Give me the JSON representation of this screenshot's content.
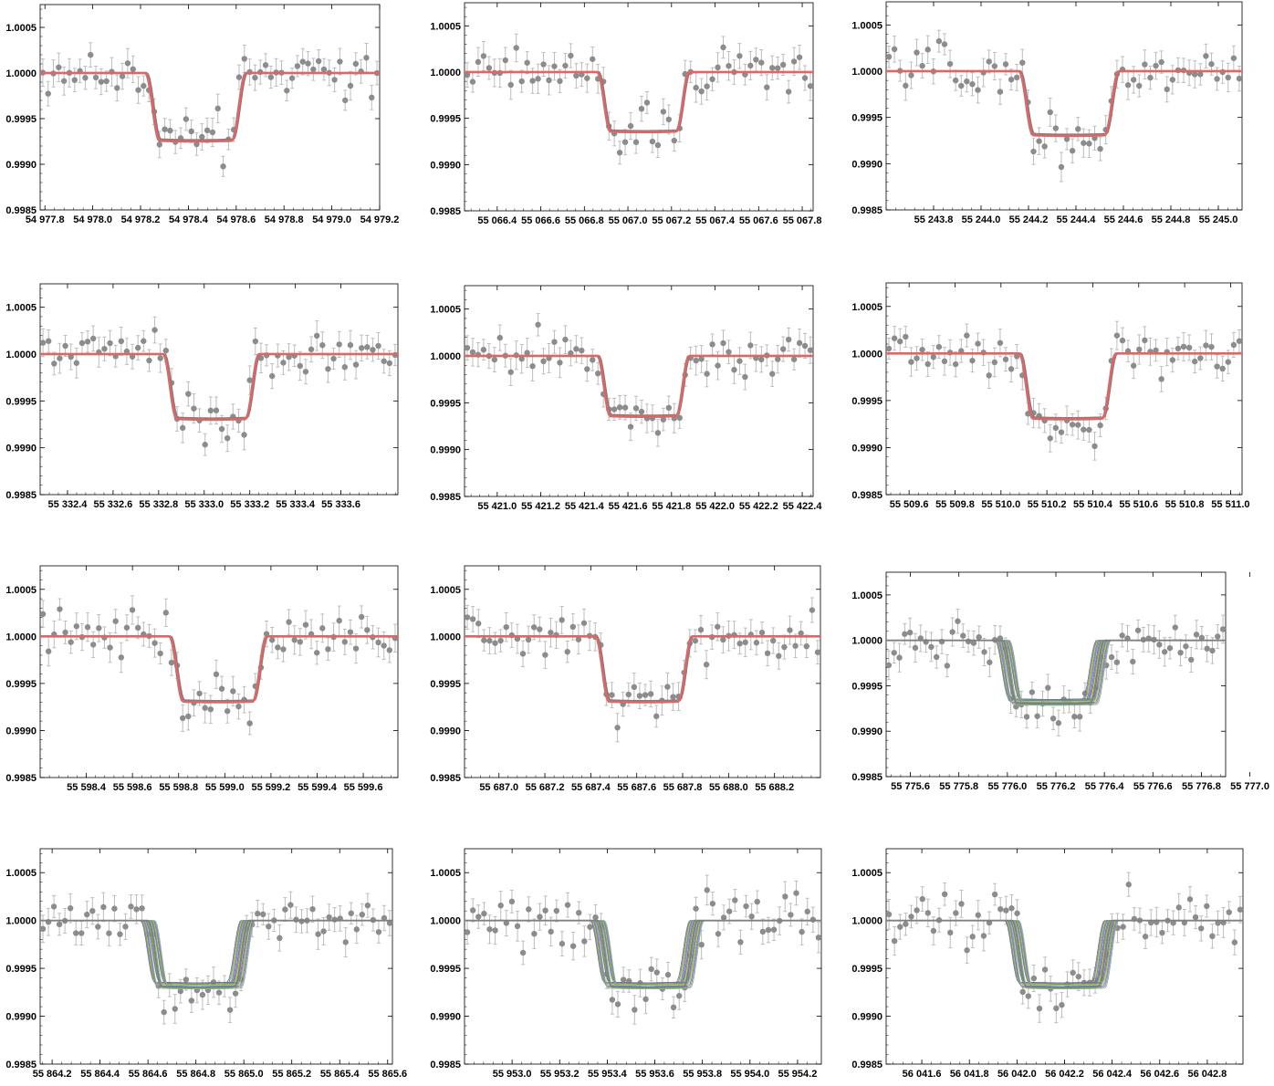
{
  "figure": {
    "colors": {
      "data": "#8c8c8c",
      "model_red": "#e06666",
      "model_gray": "#808080",
      "frame": "#000000"
    },
    "ensemble_colors": [
      "#7b6bb5",
      "#5aa05a",
      "#c8b84a",
      "#4b89c8",
      "#b66ab6",
      "#7fbf7f"
    ]
  },
  "chart_data": [
    {
      "type": "scatter",
      "id": "p1",
      "model": "red",
      "x_ticks": [
        "54 977.8",
        "54 978.0",
        "54 978.2",
        "54 978.4",
        "54 978.6",
        "54 978.8",
        "54 979.0",
        "54 979.2"
      ],
      "x_tick_values": [
        54977.8,
        54978.0,
        54978.2,
        54978.4,
        54978.6,
        54978.8,
        54979.0,
        54979.2
      ],
      "xlim": [
        54977.78,
        54979.2
      ],
      "y_ticks": [
        "1.0005",
        "1.0000",
        "0.9995",
        "0.9990",
        "0.9985"
      ],
      "y_tick_values": [
        1.0005,
        1.0,
        0.9995,
        0.999,
        0.9985
      ],
      "ylim": [
        0.9985,
        1.00075
      ],
      "transit": {
        "t1": 54978.22,
        "t4": 54978.64,
        "depth": 0.00075
      }
    },
    {
      "type": "scatter",
      "id": "p2",
      "model": "red",
      "x_ticks": [
        "55 066.4",
        "55 066.6",
        "55 066.8",
        "55 067.0",
        "55 067.2",
        "55 067.4",
        "55 067.6",
        "55 067.8"
      ],
      "x_tick_values": [
        55066.4,
        55066.6,
        55066.8,
        55067.0,
        55067.2,
        55067.4,
        55067.6,
        55067.8
      ],
      "xlim": [
        55066.25,
        55067.85
      ],
      "y_ticks": [
        "1.0005",
        "1.0000",
        "0.9995",
        "0.9990",
        "0.9985"
      ],
      "y_tick_values": [
        1.0005,
        1.0,
        0.9995,
        0.999,
        0.9985
      ],
      "ylim": [
        0.9985,
        1.00075
      ],
      "transit": {
        "t1": 55066.86,
        "t4": 55067.28,
        "depth": 0.00065
      }
    },
    {
      "type": "scatter",
      "id": "p3",
      "model": "red",
      "x_ticks": [
        "55 243.8",
        "55 244.0",
        "55 244.2",
        "55 244.4",
        "55 244.6",
        "55 244.8",
        "55 245.0"
      ],
      "x_tick_values": [
        55243.8,
        55244.0,
        55244.2,
        55244.4,
        55244.6,
        55244.8,
        55245.0
      ],
      "xlim": [
        55243.6,
        55245.1
      ],
      "y_ticks": [
        "1.0005",
        "1.0000",
        "0.9995",
        "0.9990",
        "0.9985"
      ],
      "y_tick_values": [
        1.0005,
        1.0,
        0.9995,
        0.999,
        0.9985
      ],
      "ylim": [
        0.9985,
        1.00075
      ],
      "transit": {
        "t1": 55244.16,
        "t4": 55244.58,
        "depth": 0.0007
      }
    },
    {
      "type": "scatter",
      "id": "p4",
      "model": "red",
      "x_ticks": [
        "55 332.4",
        "55 332.6",
        "55 332.8",
        "55 333.0",
        "55 333.2",
        "55 333.4",
        "55 333.6"
      ],
      "x_tick_values": [
        55332.4,
        55332.6,
        55332.8,
        55333.0,
        55333.2,
        55333.4,
        55333.6
      ],
      "xlim": [
        55332.28,
        55333.85
      ],
      "y_ticks": [
        "1.0005",
        "1.0000",
        "0.9995",
        "0.9990",
        "0.9985"
      ],
      "y_tick_values": [
        1.0005,
        1.0,
        0.9995,
        0.999,
        0.9985
      ],
      "ylim": [
        0.9985,
        1.00075
      ],
      "transit": {
        "t1": 55332.82,
        "t4": 55333.24,
        "depth": 0.0007
      }
    },
    {
      "type": "scatter",
      "id": "p5",
      "model": "red",
      "x_ticks": [
        "55 421.0",
        "55 421.2",
        "55 421.4",
        "55 421.6",
        "55 421.8",
        "55 422.0",
        "55 422.2",
        "55 422.4"
      ],
      "x_tick_values": [
        55421.0,
        55421.2,
        55421.4,
        55421.6,
        55421.8,
        55422.0,
        55422.2,
        55422.4
      ],
      "xlim": [
        55420.85,
        55422.45
      ],
      "y_ticks": [
        "1.0005",
        "1.0000",
        "0.9995",
        "0.9990",
        "0.9985"
      ],
      "y_tick_values": [
        1.0005,
        1.0,
        0.9995,
        0.999,
        0.9985
      ],
      "ylim": [
        0.9985,
        1.00075
      ],
      "transit": {
        "t1": 55421.46,
        "t4": 55421.88,
        "depth": 0.00065
      }
    },
    {
      "type": "scatter",
      "id": "p6",
      "model": "red",
      "x_ticks": [
        "55 509.6",
        "55 509.8",
        "55 510.0",
        "55 510.2",
        "55 510.4",
        "55 510.6",
        "55 510.8",
        "55 511.0"
      ],
      "x_tick_values": [
        55509.6,
        55509.8,
        55510.0,
        55510.2,
        55510.4,
        55510.6,
        55510.8,
        55511.0
      ],
      "xlim": [
        55509.5,
        55511.05
      ],
      "y_ticks": [
        "1.0005",
        "1.0000",
        "0.9995",
        "0.9990",
        "0.9985"
      ],
      "y_tick_values": [
        1.0005,
        1.0,
        0.9995,
        0.999,
        0.9985
      ],
      "ylim": [
        0.9985,
        1.00075
      ],
      "transit": {
        "t1": 55510.08,
        "t4": 55510.5,
        "depth": 0.0007
      }
    },
    {
      "type": "scatter",
      "id": "p7",
      "model": "red",
      "x_ticks": [
        "55 598.4",
        "55 598.6",
        "55 598.8",
        "55 599.0",
        "55 599.2",
        "55 599.4",
        "55 599.6"
      ],
      "x_tick_values": [
        55598.4,
        55598.6,
        55598.8,
        55599.0,
        55599.2,
        55599.4,
        55599.6
      ],
      "xlim": [
        55598.2,
        55599.75
      ],
      "y_ticks": [
        "1.0005",
        "1.0000",
        "0.9995",
        "0.9990",
        "0.9985"
      ],
      "y_tick_values": [
        1.0005,
        1.0,
        0.9995,
        0.999,
        0.9985
      ],
      "ylim": [
        0.9985,
        1.00075
      ],
      "transit": {
        "t1": 55598.76,
        "t4": 55599.18,
        "depth": 0.0007
      }
    },
    {
      "type": "scatter",
      "id": "p8",
      "model": "red",
      "x_ticks": [
        "55 687.0",
        "55 687.2",
        "55 687.4",
        "55 687.6",
        "55 687.8",
        "55 688.0",
        "55 688.2"
      ],
      "x_tick_values": [
        55687.0,
        55687.2,
        55687.4,
        55687.6,
        55687.8,
        55688.0,
        55688.2
      ],
      "xlim": [
        55686.85,
        55688.4
      ],
      "y_ticks": [
        "1.0005",
        "1.0000",
        "0.9995",
        "0.9990",
        "0.9985"
      ],
      "y_tick_values": [
        1.0005,
        1.0,
        0.9995,
        0.999,
        0.9985
      ],
      "ylim": [
        0.9985,
        1.00075
      ],
      "transit": {
        "t1": 55687.42,
        "t4": 55687.84,
        "depth": 0.0007
      }
    },
    {
      "type": "scatter",
      "id": "p9",
      "model": "ensemble",
      "x_ticks": [
        "55 775.6",
        "55 775.8",
        "55 776.0",
        "55 776.2",
        "55 776.4",
        "55 776.6",
        "55 776.8",
        "55 777.0"
      ],
      "x_tick_values": [
        55775.6,
        55775.8,
        55776.0,
        55776.2,
        55776.4,
        55776.6,
        55776.8,
        55777.0
      ],
      "xlim": [
        55775.5,
        55776.9
      ],
      "y_ticks": [
        "1.0005",
        "1.0000",
        "0.9995",
        "0.9990",
        "0.9985"
      ],
      "y_tick_values": [
        1.0005,
        1.0,
        0.9995,
        0.999,
        0.9985
      ],
      "ylim": [
        0.9985,
        1.00075
      ],
      "transit": {
        "t1": 55775.98,
        "t4": 55776.4,
        "depth": 0.0007
      }
    },
    {
      "type": "scatter",
      "id": "p10",
      "model": "ensemble",
      "x_ticks": [
        "55 864.2",
        "55 864.4",
        "55 864.6",
        "55 864.8",
        "55 865.0",
        "55 865.2",
        "55 865.4",
        "55 865.6"
      ],
      "x_tick_values": [
        55864.2,
        55864.4,
        55864.6,
        55864.8,
        55865.0,
        55865.2,
        55865.4,
        55865.6
      ],
      "xlim": [
        55864.15,
        55865.62
      ],
      "y_ticks": [
        "1.0005",
        "1.0000",
        "0.9995",
        "0.9990",
        "0.9985"
      ],
      "y_tick_values": [
        1.0005,
        1.0,
        0.9995,
        0.999,
        0.9985
      ],
      "ylim": [
        0.9985,
        1.00075
      ],
      "transit": {
        "t1": 55864.6,
        "t4": 55865.02,
        "depth": 0.0007
      }
    },
    {
      "type": "scatter",
      "id": "p11",
      "model": "ensemble",
      "x_ticks": [
        "55 953.0",
        "55 953.2",
        "55 953.4",
        "55 953.6",
        "55 953.8",
        "55 954.0",
        "55 954.2"
      ],
      "x_tick_values": [
        55953.0,
        55953.2,
        55953.4,
        55953.6,
        55953.8,
        55954.0,
        55954.2
      ],
      "xlim": [
        55952.8,
        55954.3
      ],
      "y_ticks": [
        "1.0005",
        "1.0000",
        "0.9995",
        "0.9990",
        "0.9985"
      ],
      "y_tick_values": [
        1.0005,
        1.0,
        0.9995,
        0.999,
        0.9985
      ],
      "ylim": [
        0.9985,
        1.00075
      ],
      "transit": {
        "t1": 55953.36,
        "t4": 55953.78,
        "depth": 0.0007
      }
    },
    {
      "type": "scatter",
      "id": "p12",
      "model": "ensemble",
      "x_ticks": [
        "56 041.6",
        "56 041.8",
        "56 042.0",
        "56 042.2",
        "56 042.4",
        "56 042.6",
        "56 042.8"
      ],
      "x_tick_values": [
        56041.6,
        56041.8,
        56042.0,
        56042.2,
        56042.4,
        56042.6,
        56042.8
      ],
      "xlim": [
        56041.45,
        56042.95
      ],
      "y_ticks": [
        "1.0005",
        "1.0000",
        "0.9995",
        "0.9990",
        "0.9985"
      ],
      "y_tick_values": [
        1.0005,
        1.0,
        0.9995,
        0.999,
        0.9985
      ],
      "ylim": [
        0.9985,
        1.00075
      ],
      "transit": {
        "t1": 56041.98,
        "t4": 56042.4,
        "depth": 0.0007
      }
    }
  ]
}
